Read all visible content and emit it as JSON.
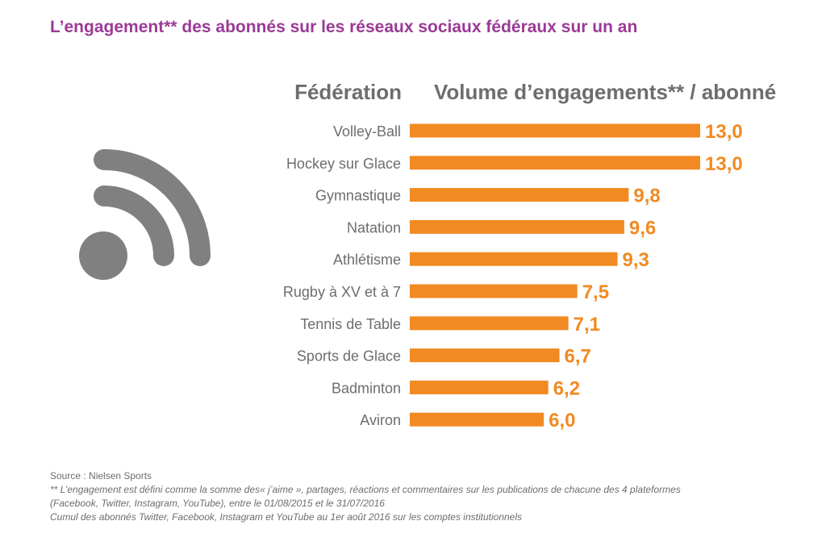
{
  "title": "L’engagement** des abonnés sur les réseaux sociaux fédéraux sur un an",
  "chart_data": {
    "type": "bar",
    "orientation": "horizontal",
    "column_headers": {
      "category": "Fédération",
      "value": "Volume d’engagements** / abonné"
    },
    "categories": [
      "Volley-Ball",
      "Hockey sur Glace",
      "Gymnastique",
      "Natation",
      "Athlétisme",
      "Rugby à XV et à 7",
      "Tennis de Table",
      "Sports de Glace",
      "Badminton",
      "Aviron"
    ],
    "values": [
      13.0,
      13.0,
      9.8,
      9.6,
      9.3,
      7.5,
      7.1,
      6.7,
      6.2,
      6.0
    ],
    "value_labels": [
      "13,0",
      "13,0",
      "9,8",
      "9,6",
      "9,3",
      "7,5",
      "7,1",
      "6,7",
      "6,2",
      "6,0"
    ],
    "xlim": [
      0,
      13.0
    ],
    "grid": false,
    "bar_color": "#f18a22"
  },
  "colors": {
    "title": "#9b3a96",
    "bar": "#f18a22",
    "label": "#6d6d6d",
    "icon": "#808080"
  },
  "icon": "rss-feed-icon",
  "footer": {
    "source": "Source : Nielsen Sports",
    "note1": "** L’engagement est défini comme la somme des« j’aime », partages, réactions et commentaires sur les publications de chacune des 4 plateformes",
    "note2": "(Facebook, Twitter, Instagram, YouTube), entre le 01/08/2015 et le 31/07/2016",
    "note3": "Cumul des abonnés Twitter, Facebook, Instagram et YouTube au 1er août 2016 sur les comptes institutionnels"
  }
}
